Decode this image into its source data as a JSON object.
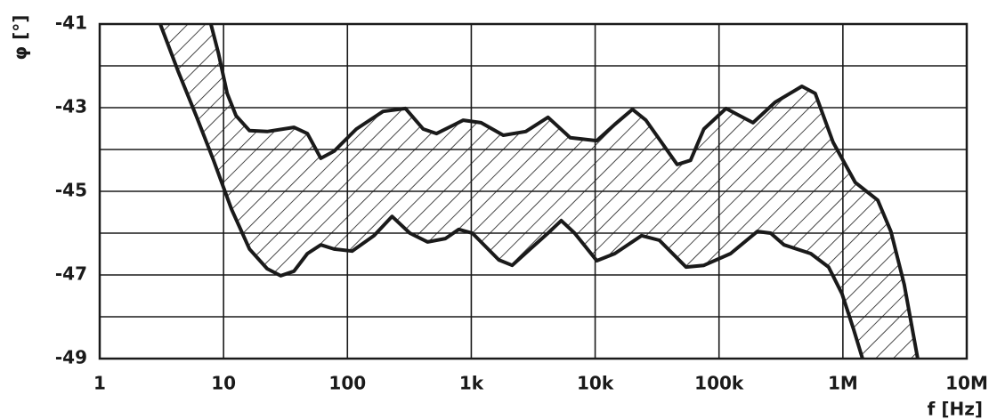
{
  "chart_data": {
    "type": "band",
    "ylabel": "φ [°]",
    "xlabel": "f [Hz]",
    "xlog": true,
    "grid": true,
    "xlim": [
      1,
      10000000
    ],
    "xticks": [
      1,
      10,
      100,
      {
        "value": 1000,
        "label": "1k"
      },
      {
        "value": 10000,
        "label": "10k"
      },
      {
        "value": 100000,
        "label": "100k"
      },
      {
        "value": 1000000,
        "label": "1M"
      },
      {
        "value": 10000000,
        "label": "10M"
      }
    ],
    "ylim": [
      -49,
      -41
    ],
    "yticks": [
      -49,
      -47,
      -45,
      -43,
      -41
    ],
    "yminor": [
      -48,
      -46,
      -44,
      -42
    ],
    "hatch": true,
    "series": [
      {
        "color": "#1a1a1a",
        "x": [
          7.9,
          9.1,
          10.7,
          12.6,
          16.2,
          22.5,
          37,
          47.5,
          61,
          78,
          118,
          194,
          294,
          409,
          524,
          861,
          1200,
          1815,
          2750,
          4160,
          6290,
          10300,
          14400,
          20000,
          25700,
          45900,
          58900,
          75500,
          114000,
          146000,
          188000,
          284000,
          467000,
          598000,
          834000,
          1260000,
          1910000,
          2440000,
          3130000,
          4020000
        ],
        "values": [
          -41,
          -41.7,
          -42.66,
          -43.19,
          -43.55,
          -43.57,
          -43.47,
          -43.62,
          -44.21,
          -44.04,
          -43.51,
          -43.09,
          -43.02,
          -43.51,
          -43.62,
          -43.3,
          -43.36,
          -43.66,
          -43.57,
          -43.23,
          -43.72,
          -43.79,
          -43.4,
          -43.04,
          -43.3,
          -44.36,
          -44.26,
          -43.51,
          -43.02,
          -43.19,
          -43.36,
          -42.87,
          -42.49,
          -42.66,
          -43.83,
          -44.79,
          -45.21,
          -45.96,
          -47.23,
          -49
        ]
      },
      {
        "color": "#1a1a1a",
        "x": [
          3.08,
          4.3,
          6.0,
          8.3,
          11.6,
          16.2,
          22.5,
          28.9,
          37,
          47.5,
          61,
          78,
          109,
          164,
          229,
          319,
          444,
          618,
          793,
          1020,
          1670,
          2140,
          2990,
          4160,
          5330,
          6830,
          10300,
          14400,
          23700,
          33000,
          54200,
          75500,
          124000,
          204000,
          261000,
          335000,
          551000,
          767000,
          984000,
          1220000,
          1440000
        ],
        "values": [
          -41,
          -42.13,
          -43.19,
          -44.26,
          -45.43,
          -46.38,
          -46.85,
          -47.02,
          -46.91,
          -46.49,
          -46.28,
          -46.38,
          -46.43,
          -46.06,
          -45.6,
          -46.0,
          -46.21,
          -46.13,
          -45.91,
          -46.0,
          -46.64,
          -46.77,
          -46.38,
          -46.0,
          -45.7,
          -46.0,
          -46.66,
          -46.49,
          -46.06,
          -46.17,
          -46.81,
          -46.77,
          -46.49,
          -45.96,
          -46.0,
          -46.28,
          -46.49,
          -46.81,
          -47.45,
          -48.3,
          -49
        ]
      }
    ]
  }
}
